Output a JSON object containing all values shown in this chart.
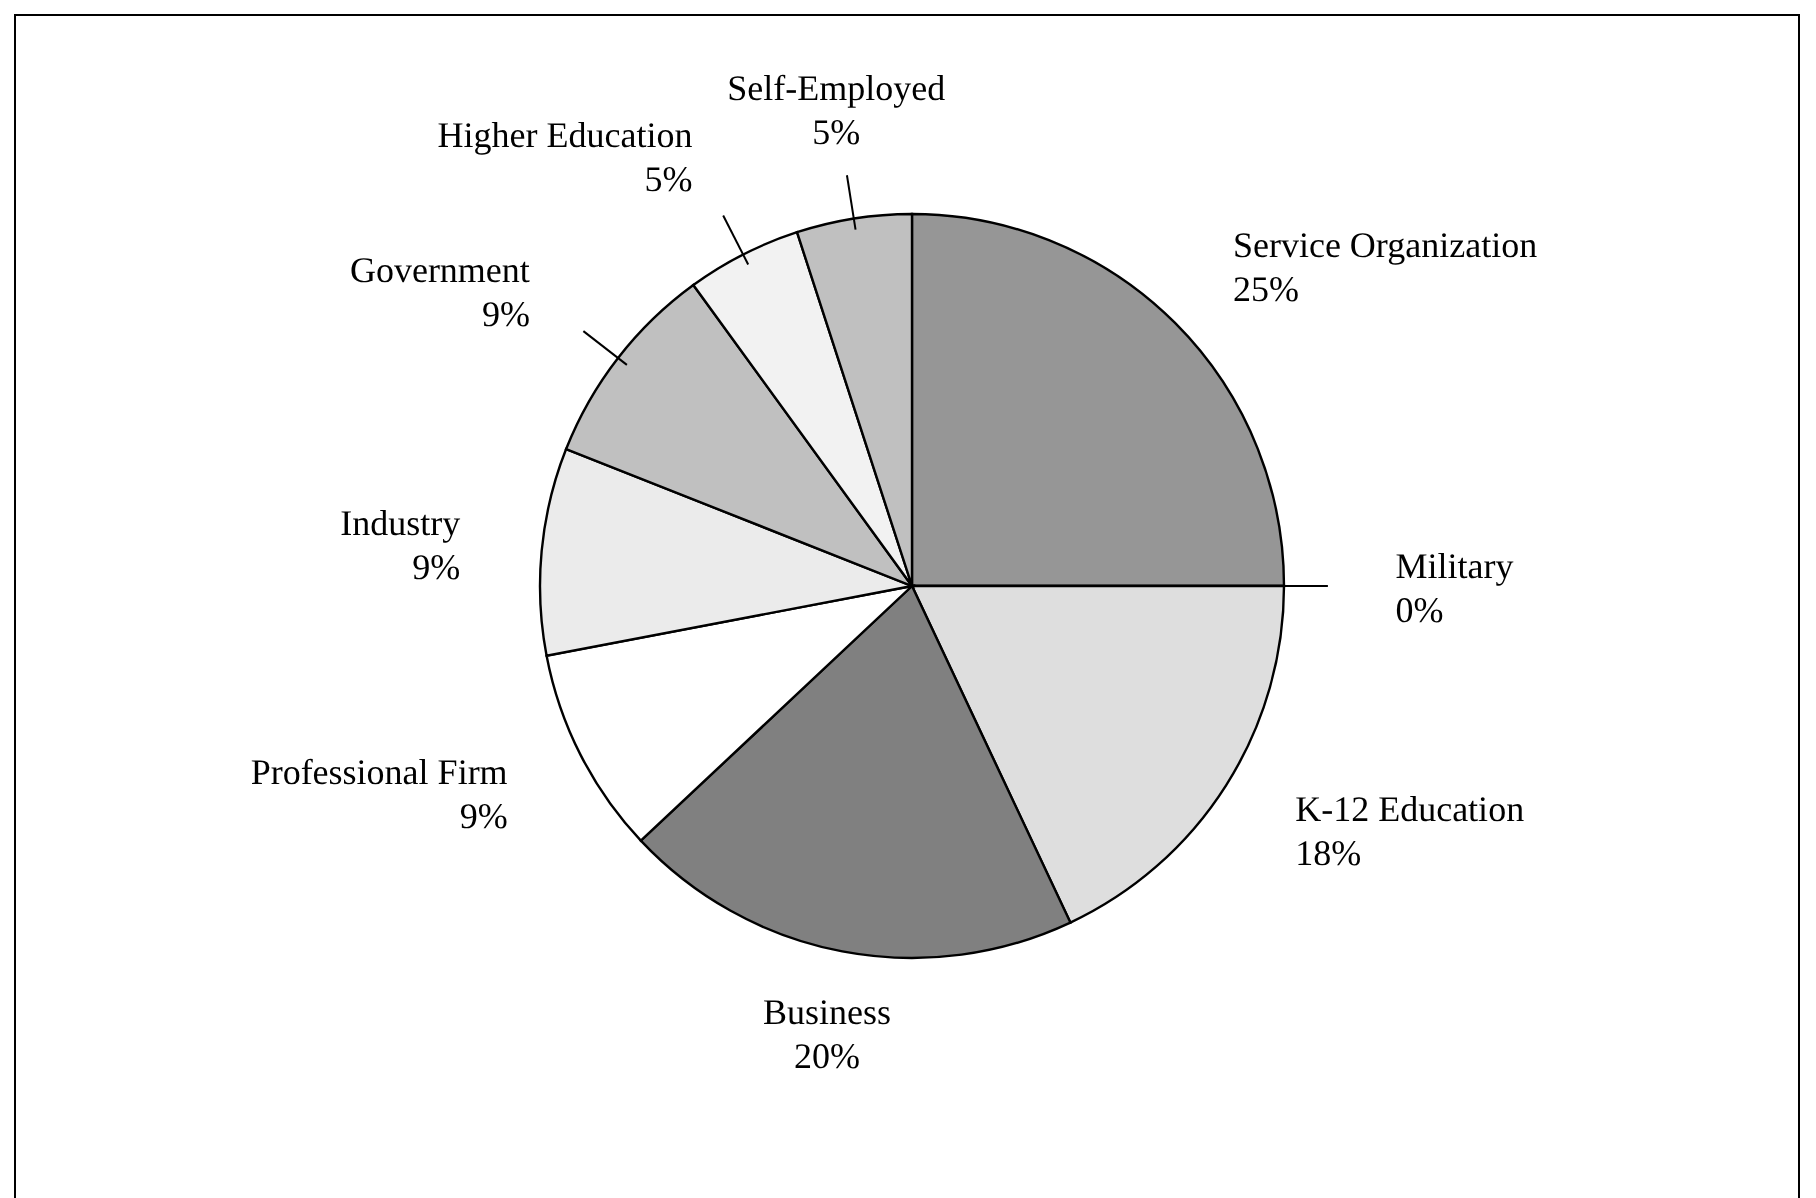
{
  "chart_data": {
    "type": "pie",
    "categories": [
      "Service Organization",
      "Military",
      "K-12 Education",
      "Business",
      "Professional Firm",
      "Industry",
      "Government",
      "Higher Education",
      "Self-Employed"
    ],
    "values": [
      25,
      0,
      18,
      20,
      9,
      9,
      9,
      5,
      5
    ],
    "value_labels": [
      "25%",
      "0%",
      "18%",
      "20%",
      "9%",
      "9%",
      "9%",
      "5%",
      "5%"
    ],
    "colors": [
      "#969696",
      "#777777",
      "#dedede",
      "#808080",
      "#ffffff",
      "#ebebeb",
      "#c0c0c0",
      "#f2f2f2",
      "#c0c0c0"
    ]
  }
}
